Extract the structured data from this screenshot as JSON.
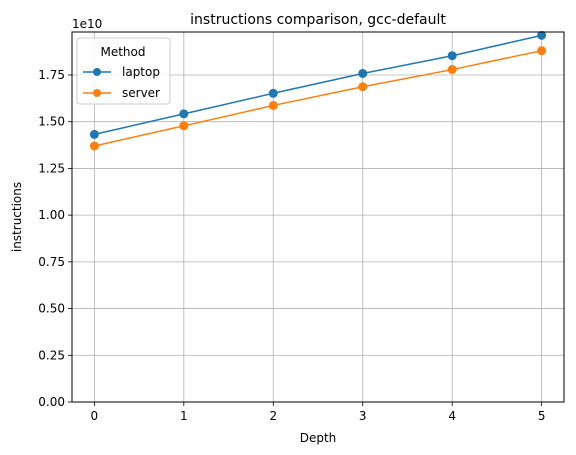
{
  "chart_data": {
    "type": "line",
    "title": "instructions comparison, gcc-default",
    "xlabel": "Depth",
    "ylabel": "instructions",
    "y_offset_label": "1e10",
    "x": [
      0,
      1,
      2,
      3,
      4,
      5
    ],
    "x_ticks": [
      "0",
      "1",
      "2",
      "3",
      "4",
      "5"
    ],
    "y_ticks": [
      "0.00",
      "0.25",
      "0.50",
      "0.75",
      "1.00",
      "1.25",
      "1.50",
      "1.75"
    ],
    "xlim": [
      -0.25,
      5.25
    ],
    "ylim": [
      0,
      19800000000.0
    ],
    "grid": true,
    "legend": {
      "title": "Method",
      "placement": "top-left"
    },
    "series": [
      {
        "name": "laptop",
        "color": "#1f77b4",
        "values": [
          14320000000.0,
          15420000000.0,
          16520000000.0,
          17580000000.0,
          18530000000.0,
          19620000000.0
        ]
      },
      {
        "name": "server",
        "color": "#ff7f0e",
        "values": [
          13700000000.0,
          14780000000.0,
          15870000000.0,
          16870000000.0,
          17790000000.0,
          18800000000.0
        ]
      }
    ]
  }
}
